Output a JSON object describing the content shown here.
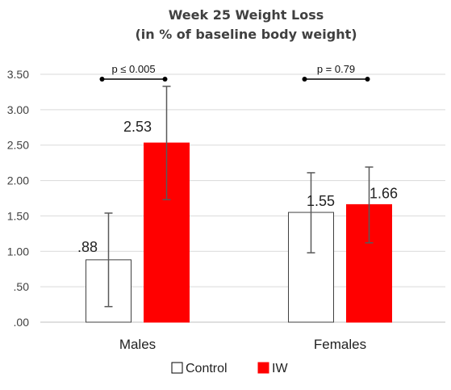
{
  "chart_data": {
    "type": "bar",
    "title": "Week 25 Weight Loss",
    "subtitle": "(in % of baseline body weight)",
    "categories": [
      "Males",
      "Females"
    ],
    "ylim": [
      0,
      3.5
    ],
    "yticks": [
      {
        "value": 0,
        "label": ".00"
      },
      {
        "value": 0.5,
        "label": ".50"
      },
      {
        "value": 1.0,
        "label": "1.00"
      },
      {
        "value": 1.5,
        "label": "1.50"
      },
      {
        "value": 2.0,
        "label": "2.00"
      },
      {
        "value": 2.5,
        "label": "2.50"
      },
      {
        "value": 3.0,
        "label": "3.00"
      },
      {
        "value": 3.5,
        "label": "3.50"
      }
    ],
    "grid": true,
    "legend_position": "bottom",
    "series": [
      {
        "name": "Control",
        "color": "#ffffff",
        "stroke": "#404040",
        "values": [
          0.88,
          1.55
        ],
        "labels": [
          ".88",
          "1.55"
        ],
        "error_low": [
          0.22,
          0.98
        ],
        "error_high": [
          1.54,
          2.11
        ]
      },
      {
        "name": "IW",
        "color": "#ff0000",
        "stroke": "#ff0000",
        "values": [
          2.53,
          1.66
        ],
        "labels": [
          "2.53",
          "1.66"
        ],
        "error_low": [
          1.73,
          1.12
        ],
        "error_high": [
          3.33,
          2.19
        ]
      }
    ],
    "annotations": [
      {
        "category": "Males",
        "text": "p ≤ 0.005"
      },
      {
        "category": "Females",
        "text": "p = 0.79"
      }
    ]
  }
}
